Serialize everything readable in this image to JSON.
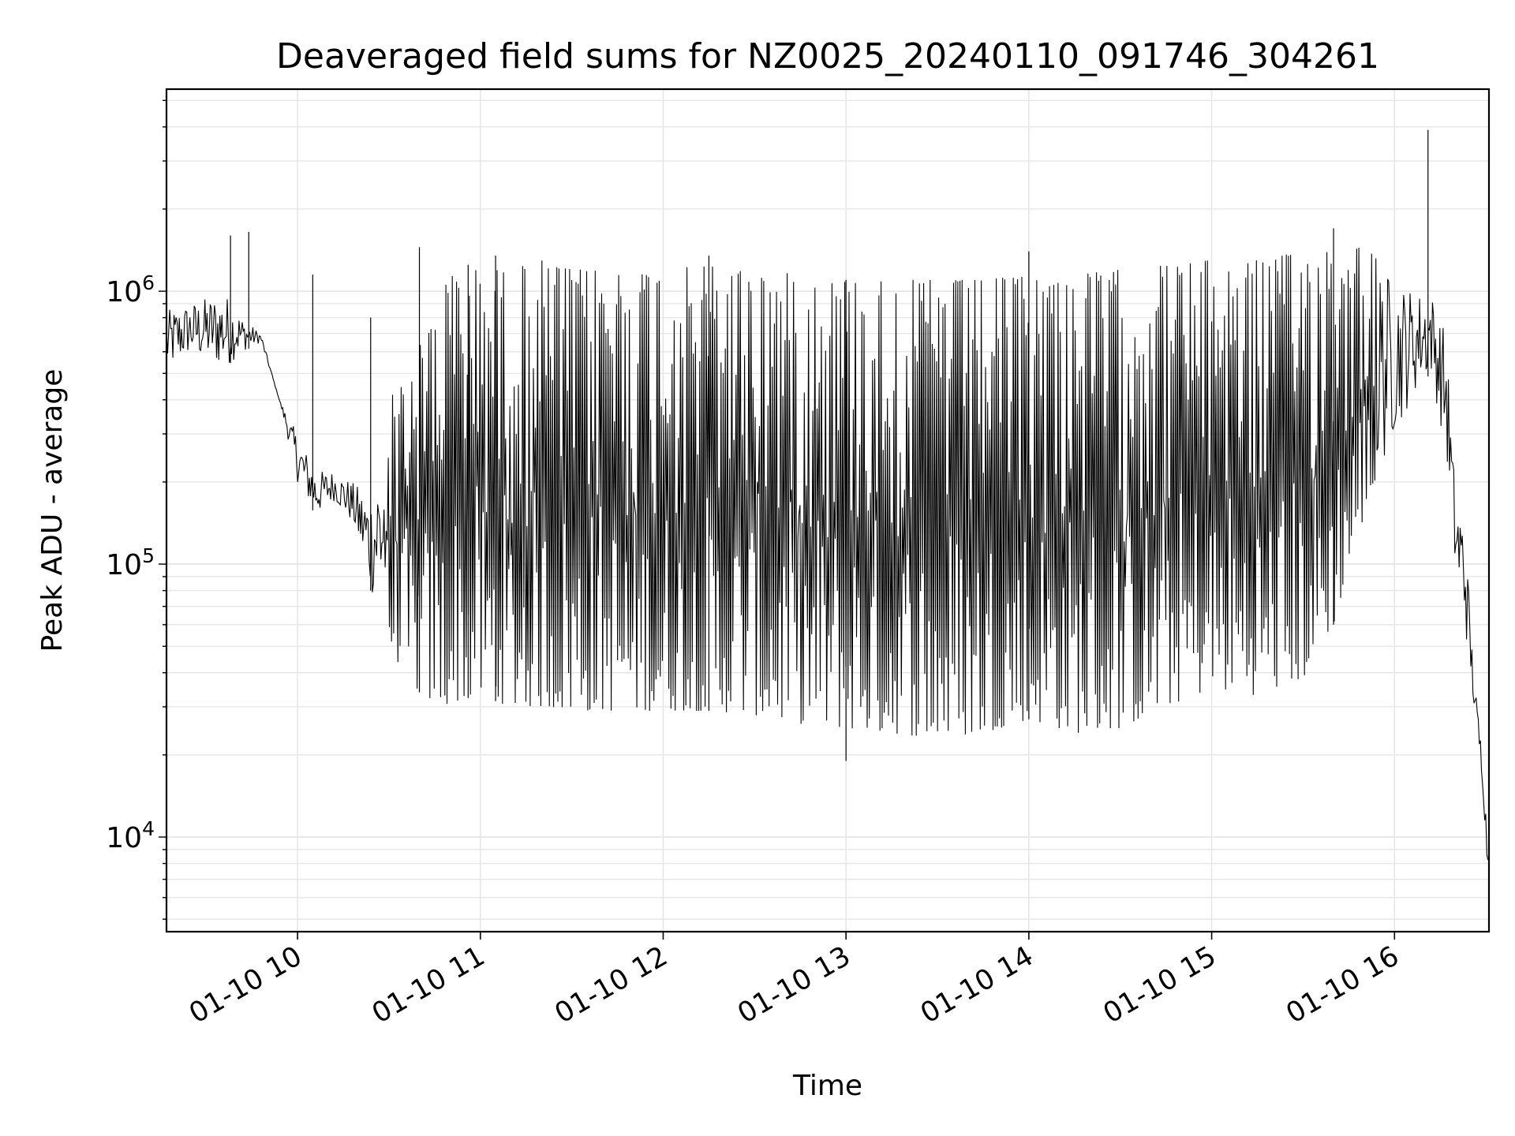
{
  "chart_data": {
    "type": "line",
    "title": "Deaveraged field sums for NZ0025_20240110_091746_304261",
    "xlabel": "Time",
    "ylabel": "Peak ADU - average",
    "xscale": "time",
    "yscale": "log",
    "xlim": [
      "01-10 09:17",
      "01-10 16:31"
    ],
    "ylim": [
      4500,
      5500000
    ],
    "grid": true,
    "line_color": "#000000",
    "xticks": [
      "01-10 10",
      "01-10 11",
      "01-10 12",
      "01-10 13",
      "01-10 14",
      "01-10 15",
      "01-10 16"
    ],
    "yticks": [
      {
        "value": 10000,
        "base": "10",
        "exp": "4"
      },
      {
        "value": 100000,
        "base": "10",
        "exp": "5"
      },
      {
        "value": 1000000,
        "base": "10",
        "exp": "6"
      }
    ],
    "series": [
      {
        "x": [
          "01-10 09:17",
          "01-10 09:24",
          "01-10 09:30",
          "01-10 09:36",
          "01-10 09:42",
          "01-10 09:48",
          "01-10 09:54",
          "01-10 10:00",
          "01-10 10:06",
          "01-10 10:12",
          "01-10 10:18",
          "01-10 10:24",
          "01-10 10:30",
          "01-10 10:36",
          "01-10 10:42",
          "01-10 10:48",
          "01-10 10:54",
          "01-10 11:00",
          "01-10 11:10",
          "01-10 11:20",
          "01-10 11:30",
          "01-10 11:40",
          "01-10 11:50",
          "01-10 12:00",
          "01-10 12:15",
          "01-10 12:30",
          "01-10 12:45",
          "01-10 13:00",
          "01-10 13:15",
          "01-10 13:30",
          "01-10 13:45",
          "01-10 14:00",
          "01-10 14:15",
          "01-10 14:30",
          "01-10 14:45",
          "01-10 15:00",
          "01-10 15:15",
          "01-10 15:30",
          "01-10 15:40",
          "01-10 15:50",
          "01-10 16:00",
          "01-10 16:08",
          "01-10 16:12",
          "01-10 16:17",
          "01-10 16:20",
          "01-10 16:23",
          "01-10 16:26",
          "01-10 16:29",
          "01-10 16:31"
        ],
        "y_low": [
          500000,
          580000,
          550000,
          520000,
          600000,
          650000,
          400000,
          200000,
          150000,
          170000,
          140000,
          80000,
          50000,
          38000,
          32000,
          30000,
          32000,
          33000,
          30000,
          30000,
          29000,
          29000,
          29000,
          29000,
          29000,
          28000,
          26000,
          25000,
          24000,
          23000,
          24000,
          27000,
          24000,
          25000,
          30000,
          35000,
          33000,
          38000,
          60000,
          150000,
          300000,
          450000,
          500000,
          250000,
          90000,
          60000,
          30000,
          15000,
          6000
        ],
        "y_high": [
          850000,
          900000,
          950000,
          1000000,
          800000,
          700000,
          400000,
          300000,
          220000,
          220000,
          200000,
          180000,
          400000,
          500000,
          700000,
          1100000,
          1200000,
          1200000,
          1200000,
          1300000,
          1200000,
          1200000,
          1200000,
          1200000,
          1250000,
          1200000,
          1150000,
          1100000,
          1100000,
          1100000,
          1100000,
          1150000,
          1150000,
          1200000,
          1250000,
          1300000,
          1300000,
          1400000,
          1500000,
          1500000,
          1100000,
          1000000,
          1000000,
          700000,
          180000,
          150000,
          40000,
          20000,
          8000
        ],
        "spikes": [
          {
            "x": "01-10 09:38",
            "y": 1600000
          },
          {
            "x": "01-10 09:44",
            "y": 1650000
          },
          {
            "x": "01-10 10:05",
            "y": 1150000
          },
          {
            "x": "01-10 10:24",
            "y": 800000
          },
          {
            "x": "01-10 10:40",
            "y": 1450000
          },
          {
            "x": "01-10 10:56",
            "y": 1250000
          },
          {
            "x": "01-10 11:05",
            "y": 1350000
          },
          {
            "x": "01-10 12:15",
            "y": 1350000
          },
          {
            "x": "01-10 13:00",
            "y": 19000
          },
          {
            "x": "01-10 14:00",
            "y": 1400000
          },
          {
            "x": "01-10 15:40",
            "y": 1700000
          },
          {
            "x": "01-10 16:11",
            "y": 3900000
          }
        ]
      }
    ]
  }
}
